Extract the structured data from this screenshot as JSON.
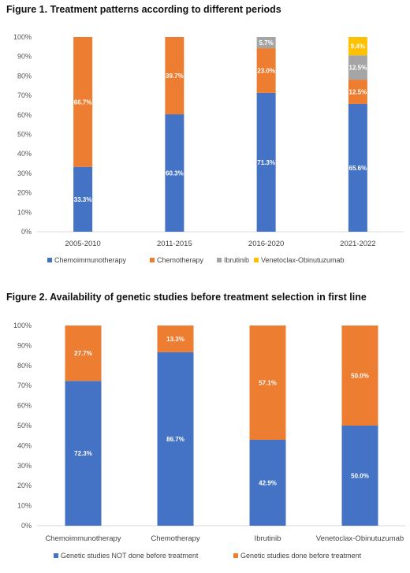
{
  "chart_data": [
    {
      "type": "bar",
      "stacked": true,
      "title": "Figure 1. Treatment patterns according to different periods",
      "xlabel": "",
      "ylabel": "",
      "ylim": [
        0,
        100
      ],
      "y_ticks": [
        "0%",
        "10%",
        "20%",
        "30%",
        "40%",
        "50%",
        "60%",
        "70%",
        "80%",
        "90%",
        "100%"
      ],
      "categories": [
        "2005-2010",
        "2011-2015",
        "2016-2020",
        "2021-2022"
      ],
      "series": [
        {
          "name": "Chemoimmunotherapy",
          "color": "#4472C4",
          "values": [
            33.3,
            60.3,
            71.3,
            65.6
          ],
          "labels": [
            "33.3%",
            "60.3%",
            "71.3%",
            "65.6%"
          ]
        },
        {
          "name": "Chemotherapy",
          "color": "#ED7D31",
          "values": [
            66.7,
            39.7,
            23.0,
            12.5
          ],
          "labels": [
            "66.7%",
            "39.7%",
            "23.0%",
            "12.5%"
          ]
        },
        {
          "name": "Ibrutinib",
          "color": "#A5A5A5",
          "values": [
            0,
            0,
            5.7,
            12.5
          ],
          "labels": [
            "",
            "",
            "5.7%",
            "12.5%"
          ]
        },
        {
          "name": "Venetoclax-Obinutuzumab",
          "color": "#FFC000",
          "values": [
            0,
            0,
            0,
            9.4
          ],
          "labels": [
            "",
            "",
            "",
            "9.4%"
          ]
        }
      ],
      "legend": "bottom",
      "grid": false
    },
    {
      "type": "bar",
      "stacked": true,
      "title": "Figure 2. Availability of genetic studies before treatment selection in first line",
      "xlabel": "",
      "ylabel": "",
      "ylim": [
        0,
        100
      ],
      "y_ticks": [
        "0%",
        "10%",
        "20%",
        "30%",
        "40%",
        "50%",
        "60%",
        "70%",
        "80%",
        "90%",
        "100%"
      ],
      "categories": [
        "Chemoimmunotherapy",
        "Chemotherapy",
        "Ibrutinib",
        "Venetoclax-Obinutuzumab"
      ],
      "series": [
        {
          "name": "Genetic studies NOT done before treatment",
          "color": "#4472C4",
          "values": [
            72.3,
            86.7,
            42.9,
            50.0
          ],
          "labels": [
            "72.3%",
            "86.7%",
            "42.9%",
            "50.0%"
          ]
        },
        {
          "name": "Genetic studies done before treatment",
          "color": "#ED7D31",
          "values": [
            27.7,
            13.3,
            57.1,
            50.0
          ],
          "labels": [
            "27.7%",
            "13.3%",
            "57.1%",
            "50.0%"
          ]
        }
      ],
      "legend": "bottom",
      "grid": false
    }
  ]
}
